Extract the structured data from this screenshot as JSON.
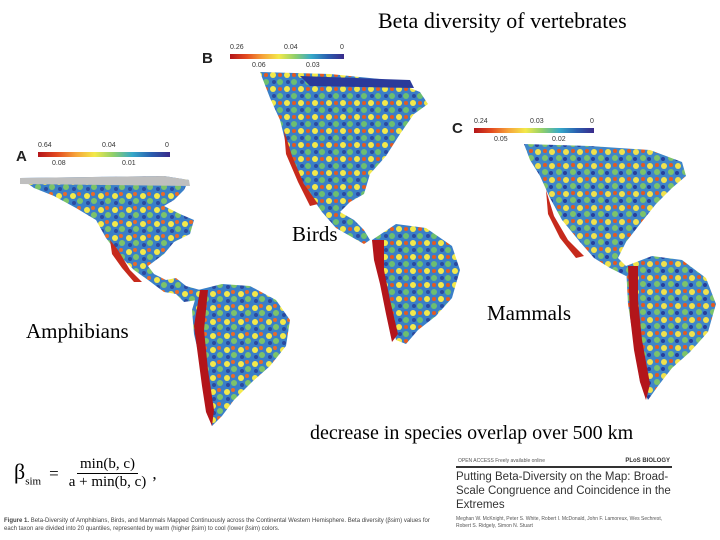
{
  "title": "Beta diversity of vertebrates",
  "labels": {
    "birds": "Birds",
    "mammals": "Mammals",
    "amphibians": "Amphibians",
    "caption": "decrease in species overlap over 500 km"
  },
  "panels": {
    "a": {
      "letter": "A",
      "ticks_top": [
        "0.64",
        "0.04",
        "0"
      ],
      "ticks_bottom": [
        "0.08",
        "0.01"
      ]
    },
    "b": {
      "letter": "B",
      "ticks_top": [
        "0.26",
        "0.04",
        "0"
      ],
      "ticks_bottom": [
        "0.06",
        "0.03"
      ]
    },
    "c": {
      "letter": "C",
      "ticks_top": [
        "0.24",
        "0.03",
        "0"
      ],
      "ticks_bottom": [
        "0.05",
        "0.02"
      ]
    }
  },
  "formula": {
    "lhs": "β",
    "sub": "sim",
    "eq": "=",
    "numerator": "min(b, c)",
    "denominator": "a + min(b, c)",
    "trail": ","
  },
  "figure_caption": {
    "lead": "Figure 1.",
    "text": "Beta-Diversity of Amphibians, Birds, and Mammals Mapped Continuously across the Continental Western Hemisphere. Beta diversity (βsim) values for each taxon are divided into 20 quantiles, represented by warm (higher βsim) to cool (lower βsim) colors."
  },
  "paper": {
    "journal_header": "OPEN ACCESS  Freely available online",
    "publisher": "PLoS BIOLOGY",
    "title": "Putting Beta-Diversity on the Map: Broad-Scale Congruence and Coincidence in the Extremes",
    "authors": "Meghan W. McKnight, Peter S. White, Robert I. McDonald, John F. Lamoreux, Wes Sechrest, Robert S. Ridgely, Simon N. Stuart"
  },
  "colors": {
    "high": "#b3151a",
    "mid": "#f3e94a",
    "low": "#2a5fb0"
  }
}
